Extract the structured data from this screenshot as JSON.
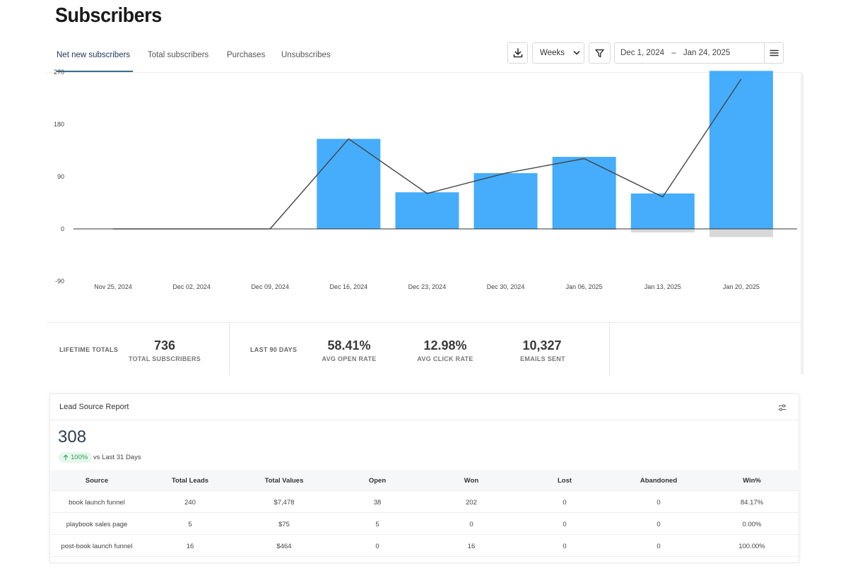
{
  "page": {
    "title": "Subscribers"
  },
  "tabs": [
    {
      "label": "Net new subscribers",
      "active": true
    },
    {
      "label": "Total subscribers",
      "active": false
    },
    {
      "label": "Purchases",
      "active": false
    },
    {
      "label": "Unsubscribes",
      "active": false
    }
  ],
  "toolbar": {
    "download_icon": "download-icon",
    "interval": "Weeks",
    "filter_icon": "filter-icon",
    "date_start": "Dec 1, 2024",
    "date_sep": "–",
    "date_end": "Jan 24, 2025",
    "menu_icon": "hamburger-menu-icon"
  },
  "chart_data": {
    "type": "bar",
    "categories": [
      "Nov 25, 2024",
      "Dec 02, 2024",
      "Dec 09, 2024",
      "Dec 16, 2024",
      "Dec 23, 2024",
      "Dec 30, 2024",
      "Jan 06, 2025",
      "Jan 13, 2025",
      "Jan 20, 2025"
    ],
    "series": [
      {
        "kind": "bar",
        "values": [
          0,
          0,
          0,
          155,
          63,
          96,
          124,
          61,
          272
        ]
      },
      {
        "kind": "bar",
        "values": [
          0,
          0,
          0,
          0,
          0,
          0,
          -2,
          -6,
          -14
        ]
      },
      {
        "kind": "line",
        "values": [
          0,
          0,
          0,
          155,
          61,
          96,
          121,
          55,
          258
        ]
      }
    ],
    "yticks": [
      270,
      180,
      90,
      0,
      -90
    ],
    "ylim": [
      -90,
      270
    ],
    "colors": {
      "bar": "#45adfc",
      "negative_bar": "#d8d8d8",
      "line": "#444444",
      "axis": "#333333"
    }
  },
  "totals": {
    "lifetime_label": "LIFETIME TOTALS",
    "total_subscribers": "736",
    "total_subscribers_label": "TOTAL SUBSCRIBERS",
    "last90_label": "LAST 90 DAYS",
    "open_rate": "58.41%",
    "open_rate_label": "AVG OPEN RATE",
    "click_rate": "12.98%",
    "click_rate_label": "AVG CLICK RATE",
    "emails_sent": "10,327",
    "emails_sent_label": "EMAILS SENT"
  },
  "lead_report": {
    "title": "Lead Source Report",
    "settings_icon": "sliders-icon",
    "total": "308",
    "change": "100%",
    "change_icon": "arrow-up-icon",
    "comparison": "vs Last 31 Days",
    "columns": [
      "Source",
      "Total Leads",
      "Total Values",
      "Open",
      "Won",
      "Lost",
      "Abandoned",
      "Win%"
    ],
    "rows": [
      [
        "book launch funnel",
        "240",
        "$7,478",
        "38",
        "202",
        "0",
        "0",
        "84.17%"
      ],
      [
        "playbook sales page",
        "5",
        "$75",
        "5",
        "0",
        "0",
        "0",
        "0.00%"
      ],
      [
        "post-book launch funnel",
        "16",
        "$464",
        "0",
        "16",
        "0",
        "0",
        "100.00%"
      ]
    ]
  }
}
